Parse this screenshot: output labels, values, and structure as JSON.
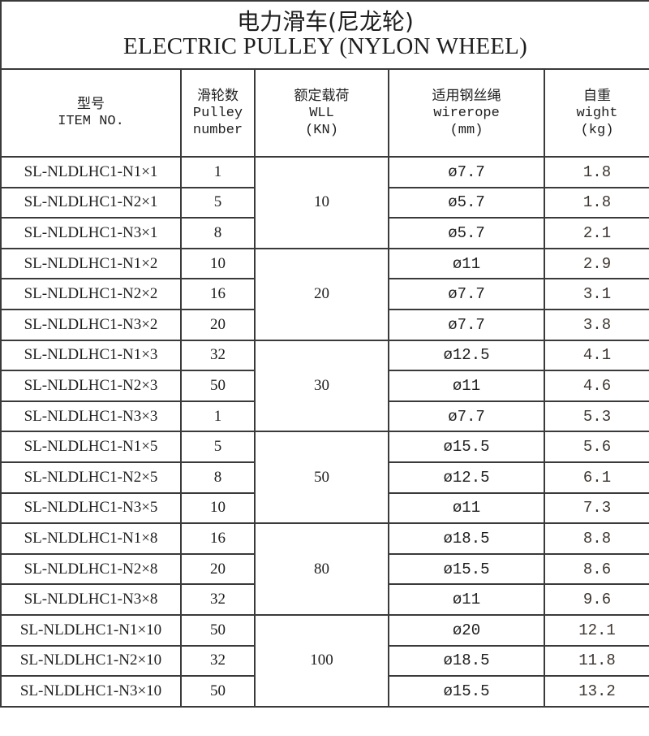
{
  "title": {
    "cn": "电力滑车(尼龙轮)",
    "en": "ELECTRIC PULLEY (NYLON WHEEL)"
  },
  "headers": [
    {
      "cn": "型号",
      "en1": "ITEM NO.",
      "en2": ""
    },
    {
      "cn": "滑轮数",
      "en1": "Pulley",
      "en2": "number"
    },
    {
      "cn": "额定载荷",
      "en1": "WLL",
      "en2": "(KN)"
    },
    {
      "cn": "适用钢丝绳",
      "en1": "wirerope",
      "en2": "(mm)"
    },
    {
      "cn": "自重",
      "en1": "wight",
      "en2": "(kg)"
    }
  ],
  "groups": [
    {
      "wll": "10",
      "rows": [
        {
          "item": "SL-NLDLHC1-N1×1",
          "pulley": "1",
          "wire": "ø7.7",
          "weight": "1.8"
        },
        {
          "item": "SL-NLDLHC1-N2×1",
          "pulley": "5",
          "wire": "ø5.7",
          "weight": "1.8"
        },
        {
          "item": "SL-NLDLHC1-N3×1",
          "pulley": "8",
          "wire": "ø5.7",
          "weight": "2.1"
        }
      ]
    },
    {
      "wll": "20",
      "rows": [
        {
          "item": "SL-NLDLHC1-N1×2",
          "pulley": "10",
          "wire": "ø11",
          "weight": "2.9"
        },
        {
          "item": "SL-NLDLHC1-N2×2",
          "pulley": "16",
          "wire": "ø7.7",
          "weight": "3.1"
        },
        {
          "item": "SL-NLDLHC1-N3×2",
          "pulley": "20",
          "wire": "ø7.7",
          "weight": "3.8"
        }
      ]
    },
    {
      "wll": "30",
      "rows": [
        {
          "item": "SL-NLDLHC1-N1×3",
          "pulley": "32",
          "wire": "ø12.5",
          "weight": "4.1"
        },
        {
          "item": "SL-NLDLHC1-N2×3",
          "pulley": "50",
          "wire": "ø11",
          "weight": "4.6"
        },
        {
          "item": "SL-NLDLHC1-N3×3",
          "pulley": "1",
          "wire": "ø7.7",
          "weight": "5.3"
        }
      ]
    },
    {
      "wll": "50",
      "rows": [
        {
          "item": "SL-NLDLHC1-N1×5",
          "pulley": "5",
          "wire": "ø15.5",
          "weight": "5.6"
        },
        {
          "item": "SL-NLDLHC1-N2×5",
          "pulley": "8",
          "wire": "ø12.5",
          "weight": "6.1"
        },
        {
          "item": "SL-NLDLHC1-N3×5",
          "pulley": "10",
          "wire": "ø11",
          "weight": "7.3"
        }
      ]
    },
    {
      "wll": "80",
      "rows": [
        {
          "item": "SL-NLDLHC1-N1×8",
          "pulley": "16",
          "wire": "ø18.5",
          "weight": "8.8"
        },
        {
          "item": "SL-NLDLHC1-N2×8",
          "pulley": "20",
          "wire": "ø15.5",
          "weight": "8.6"
        },
        {
          "item": "SL-NLDLHC1-N3×8",
          "pulley": "32",
          "wire": "ø11",
          "weight": "9.6"
        }
      ]
    },
    {
      "wll": "100",
      "rows": [
        {
          "item": "SL-NLDLHC1-N1×10",
          "pulley": "50",
          "wire": "ø20",
          "weight": "12.1"
        },
        {
          "item": "SL-NLDLHC1-N2×10",
          "pulley": "32",
          "wire": "ø18.5",
          "weight": "11.8"
        },
        {
          "item": "SL-NLDLHC1-N3×10",
          "pulley": "50",
          "wire": "ø15.5",
          "weight": "13.2"
        }
      ]
    }
  ]
}
